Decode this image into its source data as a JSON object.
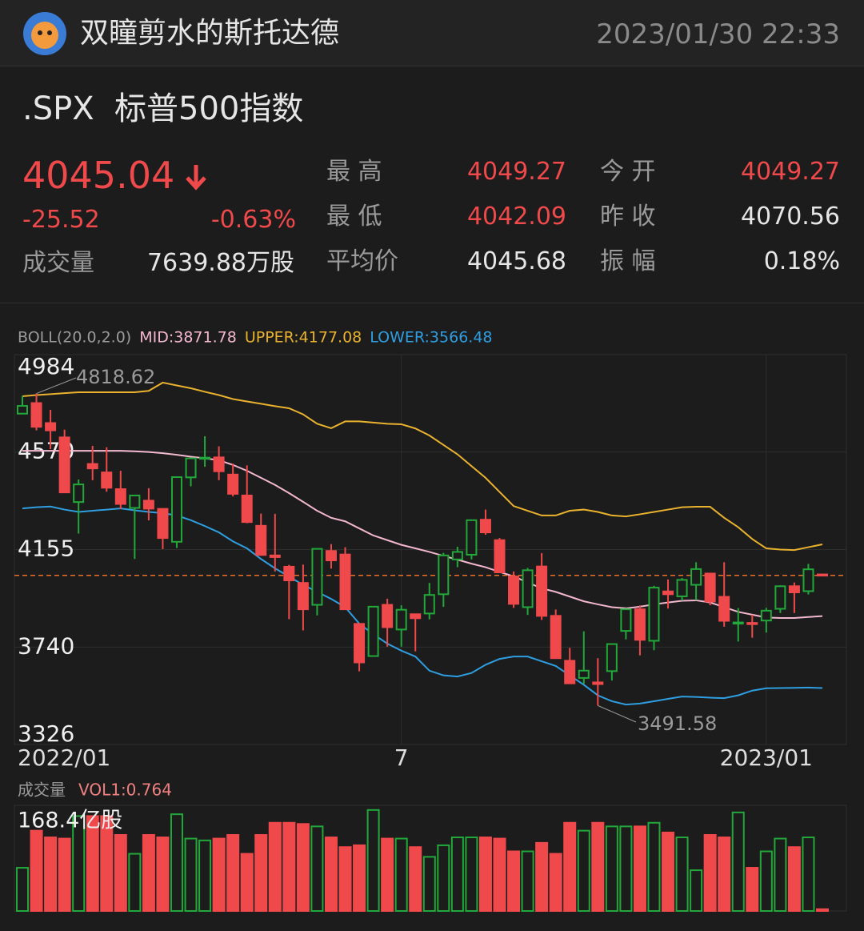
{
  "header": {
    "user": "双瞳剪水的斯托达德",
    "datetime": "2023/01/30  22:33"
  },
  "quote": {
    "symbol": ".SPX",
    "name": "标普500指数",
    "price": "4045.04",
    "change": "-25.52",
    "change_pct": "-0.63%",
    "stats": [
      {
        "label": "最 高",
        "value": "4049.27"
      },
      {
        "label": "今 开",
        "value": "4049.27"
      },
      {
        "label": "最 低",
        "value": "4042.09"
      },
      {
        "label": "昨 收",
        "value": "4070.56"
      },
      {
        "label": "平均价",
        "value": "4045.68"
      },
      {
        "label": "振 幅",
        "value": "0.18%"
      }
    ],
    "volume_label": "成交量",
    "volume": "7639.88万股"
  },
  "chart_data": [
    {
      "type": "candlestick",
      "indicator": "BOLL(20.0,2.0)",
      "indicator_values": [
        "MID:3871.78",
        "UPPER:4177.08",
        "LOWER:3566.48"
      ],
      "categories": [
        "2022/01",
        null,
        null,
        null,
        null,
        null,
        null,
        null,
        null,
        null,
        null,
        null,
        null,
        null,
        null,
        null,
        null,
        null,
        null,
        null,
        null,
        null,
        null,
        null,
        null,
        null,
        null,
        "7",
        null,
        null,
        null,
        null,
        null,
        null,
        null,
        null,
        null,
        null,
        null,
        null,
        null,
        null,
        null,
        null,
        null,
        null,
        null,
        null,
        null,
        null,
        null,
        null,
        null,
        "2023/01",
        null,
        null,
        null,
        null
      ],
      "open": [
        4733,
        4778,
        4693,
        4632,
        4357,
        4519,
        4483,
        4412,
        4332,
        4363,
        4328,
        4188,
        4462,
        4541,
        4547,
        4474,
        4385,
        4256,
        4130,
        4082,
        4013,
        3920,
        4149,
        4134,
        3839,
        3702,
        3920,
        3815,
        3880,
        3883,
        3965,
        4113,
        4133,
        4282,
        4195,
        4041,
        3910,
        4083,
        3873,
        3682,
        3609,
        3590,
        3638,
        3809,
        3901,
        3767,
        3977,
        3956,
        4005,
        4053,
        3954,
        3845,
        3843,
        3853,
        3903,
        3999,
        3978,
        4049.27
      ],
      "high": [
        4809,
        4818.62,
        4749,
        4665,
        4453,
        4596,
        4590,
        4490,
        4385,
        4416,
        4329,
        4465,
        4546,
        4637,
        4594,
        4521,
        4513,
        4308,
        4307,
        4090,
        4091,
        4158,
        4178,
        4165,
        3839,
        3912,
        3946,
        3918,
        3880,
        4013,
        4141,
        4167,
        4280,
        4325,
        4204,
        4062,
        4077,
        4140,
        3900,
        3737,
        3807,
        3693,
        3756,
        3905,
        3918,
        4001,
        4028,
        4034,
        4101,
        4053,
        4101,
        3906,
        3878,
        3907,
        4003,
        4015,
        4094,
        4049.27
      ],
      "low": [
        4733,
        4662,
        4582,
        4395,
        4223,
        4450,
        4401,
        4327,
        4115,
        4279,
        4157,
        4162,
        4424,
        4507,
        4450,
        4381,
        4267,
        4129,
        4062,
        3859,
        3811,
        3875,
        4074,
        3900,
        3637,
        3702,
        3742,
        3742,
        3722,
        3858,
        3911,
        4080,
        4113,
        4218,
        4058,
        3907,
        3877,
        3856,
        3693,
        3584,
        3584,
        3491.58,
        3598,
        3773,
        3705,
        3727,
        3904,
        3938,
        3939,
        3918,
        3827,
        3764,
        3780,
        3802,
        3885,
        3885,
        3964,
        4042.09
      ],
      "close": [
        4766,
        4677,
        4662,
        4398,
        4432,
        4500,
        4418,
        4349,
        4385,
        4329,
        4204,
        4463,
        4543,
        4546,
        4488,
        4392,
        4272,
        4132,
        4123,
        4024,
        3901,
        4158,
        4109,
        3901,
        3675,
        3912,
        3825,
        3899,
        3863,
        3962,
        4130,
        4145,
        4280,
        4228,
        4058,
        3924,
        4067,
        3873,
        3693,
        3586,
        3640,
        3583,
        3753,
        3901,
        3771,
        3993,
        3965,
        4026,
        4072,
        3934,
        3852,
        3845,
        3840,
        3895,
        3999,
        3973,
        4071,
        4045.04
      ],
      "up_color": "#22a83a",
      "down_color": "#f0494b",
      "series": [
        {
          "name": "UPPER",
          "color": "#e9b22e",
          "values": [
            4807,
            4812,
            4816,
            4820,
            4824,
            4824,
            4824,
            4824,
            4824,
            4830,
            4865,
            4853,
            4841,
            4826,
            4812,
            4795,
            4785,
            4775,
            4765,
            4756,
            4730,
            4690,
            4671,
            4700,
            4700,
            4695,
            4690,
            4688,
            4670,
            4640,
            4600,
            4560,
            4510,
            4460,
            4400,
            4340,
            4320,
            4300,
            4300,
            4320,
            4325,
            4315,
            4300,
            4296,
            4305,
            4315,
            4325,
            4335,
            4337,
            4337,
            4290,
            4250,
            4200,
            4160,
            4155,
            4153,
            4165,
            4177
          ]
        },
        {
          "name": "MID",
          "color": "#f3b7cf",
          "values": [
            4575,
            4575,
            4575,
            4575,
            4575,
            4575,
            4575,
            4575,
            4573,
            4570,
            4565,
            4558,
            4550,
            4543,
            4535,
            4515,
            4490,
            4460,
            4430,
            4395,
            4358,
            4320,
            4290,
            4275,
            4245,
            4215,
            4195,
            4175,
            4160,
            4145,
            4128,
            4112,
            4095,
            4080,
            4060,
            4041,
            4015,
            3990,
            3975,
            3955,
            3935,
            3922,
            3910,
            3905,
            3912,
            3922,
            3930,
            3937,
            3939,
            3930,
            3910,
            3890,
            3878,
            3866,
            3864,
            3864,
            3868,
            3872
          ]
        },
        {
          "name": "LOWER",
          "color": "#2f9ee0",
          "values": [
            4330,
            4335,
            4338,
            4325,
            4315,
            4320,
            4325,
            4330,
            4322,
            4315,
            4310,
            4300,
            4280,
            4255,
            4228,
            4190,
            4160,
            4115,
            4075,
            4040,
            4005,
            3975,
            3945,
            3910,
            3840,
            3795,
            3755,
            3725,
            3700,
            3640,
            3620,
            3615,
            3630,
            3665,
            3690,
            3700,
            3700,
            3680,
            3660,
            3620,
            3580,
            3535,
            3510,
            3496,
            3500,
            3510,
            3520,
            3530,
            3528,
            3525,
            3523,
            3535,
            3555,
            3565,
            3566,
            3567,
            3568,
            3566
          ]
        }
      ],
      "ylim": [
        3326,
        4984
      ],
      "yticks": [
        4984,
        4570,
        4155,
        3740,
        3326
      ],
      "grid": true,
      "max_label": 4818.62,
      "min_label": 3491.58,
      "price_line_color": "#e8702a"
    },
    {
      "type": "bar",
      "title": "成交量",
      "indicator_values": [
        "VOL1:0.764"
      ],
      "values": [
        71,
        132,
        121,
        119,
        156,
        156,
        156,
        125,
        94,
        125,
        121,
        159,
        119,
        116,
        119,
        125,
        94,
        125,
        145,
        145,
        143,
        139,
        121,
        105,
        108,
        166,
        119,
        119,
        105,
        89,
        108,
        121,
        121,
        121,
        119,
        98,
        98,
        112,
        94,
        145,
        132,
        145,
        139,
        139,
        139,
        145,
        129,
        121,
        67,
        125,
        121,
        162,
        71,
        98,
        119,
        105,
        121,
        3
      ],
      "ylim": [
        0,
        168.4
      ],
      "yticks": [
        {
          "value": 168.4,
          "label": "168.4亿股"
        }
      ]
    }
  ]
}
